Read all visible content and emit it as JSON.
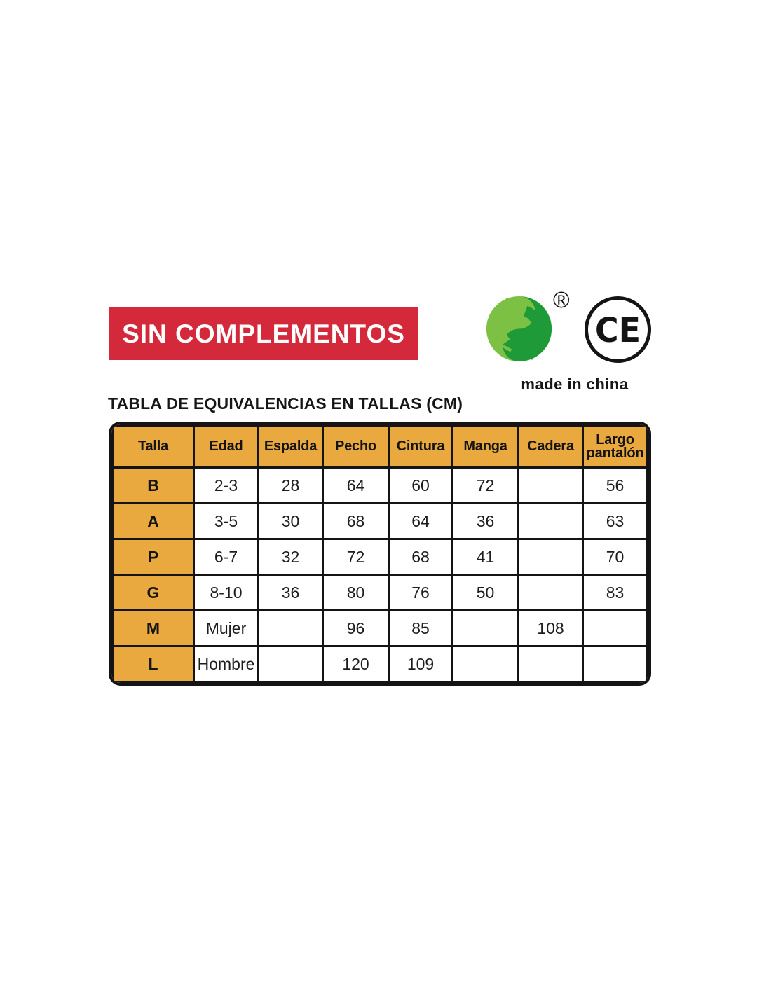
{
  "banner": {
    "label": "SIN COMPLEMENTOS",
    "bg_color": "#d3293a",
    "text_color": "#ffffff"
  },
  "logos": {
    "green_dot": {
      "name": "green-dot-recycling-symbol",
      "registered_symbol": "®",
      "light_green": "#7cc143",
      "dark_green": "#1e9b38"
    },
    "ce_mark": {
      "label": "CE"
    },
    "made_in_label": "made in china"
  },
  "size_table": {
    "title": "TABLA DE EQUIVALENCIAS EN TALLAS (CM)",
    "header_bg_color": "#e9a93f",
    "columns": [
      {
        "key": "talla",
        "label": "Talla"
      },
      {
        "key": "edad",
        "label": "Edad"
      },
      {
        "key": "espalda",
        "label": "Espalda"
      },
      {
        "key": "pecho",
        "label": "Pecho"
      },
      {
        "key": "cintura",
        "label": "Cintura"
      },
      {
        "key": "manga",
        "label": "Manga"
      },
      {
        "key": "cadera",
        "label": "Cadera"
      },
      {
        "key": "largo_pantalon",
        "label": "Largo pantalón"
      }
    ],
    "rows": [
      {
        "talla": "B",
        "cells": [
          "2-3",
          "28",
          "64",
          "60",
          "72",
          "",
          "56"
        ]
      },
      {
        "talla": "A",
        "cells": [
          "3-5",
          "30",
          "68",
          "64",
          "36",
          "",
          "63"
        ]
      },
      {
        "talla": "P",
        "cells": [
          "6-7",
          "32",
          "72",
          "68",
          "41",
          "",
          "70"
        ]
      },
      {
        "talla": "G",
        "cells": [
          "8-10",
          "36",
          "80",
          "76",
          "50",
          "",
          "83"
        ]
      },
      {
        "talla": "M",
        "cells": [
          "Mujer",
          "",
          "96",
          "85",
          "",
          "108",
          ""
        ]
      },
      {
        "talla": "L",
        "cells": [
          "Hombre",
          "",
          "120",
          "109",
          "",
          "",
          ""
        ]
      }
    ]
  }
}
